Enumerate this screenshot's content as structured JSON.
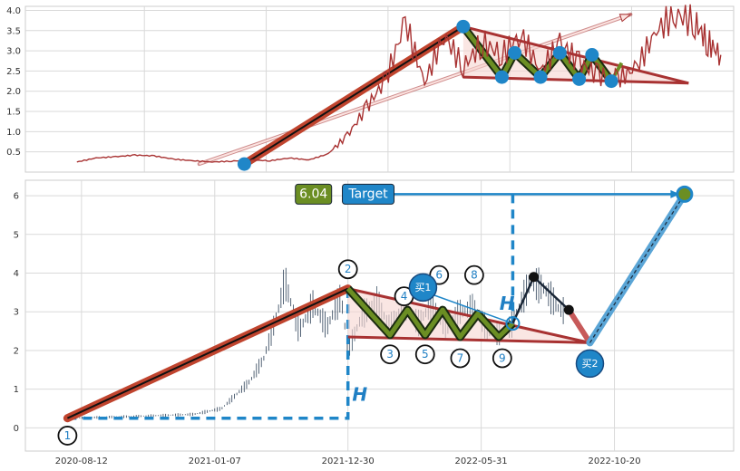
{
  "chart_data": [
    {
      "type": "line",
      "title": "",
      "xlabel": "",
      "ylabel": "",
      "ylim": [
        0.0,
        4.1
      ],
      "yticks": [
        "0.5",
        "1.0",
        "1.5",
        "2.0",
        "2.5",
        "3.0",
        "3.5",
        "4.0"
      ],
      "grid": true,
      "series": [
        {
          "color": "#a83232",
          "x": [
            0,
            3,
            6,
            9,
            12,
            15,
            18,
            21,
            24,
            27,
            30,
            33,
            36,
            39,
            42,
            45,
            48,
            51,
            54,
            57,
            60,
            63,
            66,
            69,
            72,
            75,
            78,
            81,
            84,
            87,
            90,
            93,
            96,
            98,
            100
          ],
          "values": [
            0.25,
            0.35,
            0.38,
            0.42,
            0.4,
            0.32,
            0.28,
            0.25,
            0.27,
            0.3,
            0.28,
            0.35,
            0.3,
            0.45,
            0.9,
            1.6,
            2.3,
            3.7,
            2.2,
            3.4,
            2.6,
            3.2,
            2.9,
            3.4,
            2.5,
            3.2,
            2.7,
            2.4,
            2.3,
            2.6,
            3.5,
            3.9,
            3.7,
            3.2,
            2.9
          ]
        }
      ],
      "annotations": {
        "pivots": [
          {
            "x": 26,
            "y": 0.2
          },
          {
            "x": 60,
            "y": 3.6
          },
          {
            "x": 66,
            "y": 2.35
          },
          {
            "x": 68,
            "y": 2.95
          },
          {
            "x": 72,
            "y": 2.35
          },
          {
            "x": 75,
            "y": 2.95
          },
          {
            "x": 78,
            "y": 2.3
          },
          {
            "x": 80,
            "y": 2.9
          },
          {
            "x": 83,
            "y": 2.25
          }
        ],
        "triangle": {
          "apex": {
            "x": 60,
            "y": 3.6
          },
          "upper_end": {
            "x": 95,
            "y": 2.2
          },
          "lower_start": {
            "x": 60,
            "y": 2.35
          }
        },
        "projection_arrow": {
          "from": {
            "x": 19,
            "y": 0.2
          },
          "to": {
            "x": 86,
            "y": 3.9
          }
        }
      }
    },
    {
      "type": "line",
      "title": "",
      "xlabel": "",
      "ylabel": "",
      "ylim": [
        -0.6,
        6.4
      ],
      "yticks": [
        "0",
        "1",
        "2",
        "3",
        "4",
        "5",
        "6"
      ],
      "xticks": [
        "2020-08-12",
        "2021-01-07",
        "2021-12-30",
        "2022-05-31",
        "2022-10-20"
      ],
      "grid": true,
      "points": [
        {
          "label": "1",
          "x": 0,
          "y": 0.25
        },
        {
          "label": "2",
          "x": 40,
          "y": 3.6
        },
        {
          "label": "3",
          "x": 46,
          "y": 2.4
        },
        {
          "label": "4",
          "x": 48,
          "y": 3.4
        },
        {
          "label": "5",
          "x": 51,
          "y": 2.4
        },
        {
          "label": "6",
          "x": 53,
          "y": 3.5
        },
        {
          "label": "7",
          "x": 56,
          "y": 2.35
        },
        {
          "label": "8",
          "x": 58,
          "y": 3.5
        },
        {
          "label": "9",
          "x": 62,
          "y": 2.35
        }
      ],
      "labels": {
        "H": "H",
        "buy1": "买1",
        "buy2": "买2",
        "target_box": "Target",
        "value_box": "6.04"
      },
      "target_value": 6.04,
      "buy_points": [
        {
          "name": "买1",
          "x": 63.5,
          "y": 2.7
        },
        {
          "name": "买2",
          "x": 74.5,
          "y": 2.2
        }
      ],
      "projection": {
        "from": {
          "x": 74.5,
          "y": 2.2
        },
        "to": {
          "x": 88,
          "y": 6.04
        }
      },
      "colors": {
        "price": "#2a3e55",
        "trend": "#b33a2a",
        "zigzag": "#6b8e23",
        "accent": "#1f86c8",
        "target_box": "#1f86c8",
        "value_box": "#6b8e23"
      }
    }
  ]
}
